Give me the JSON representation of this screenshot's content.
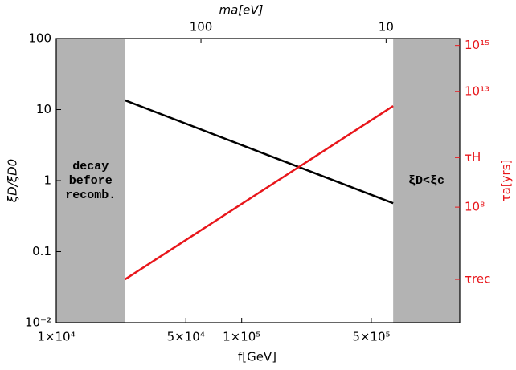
{
  "chart_data": {
    "type": "line",
    "x_label": "f[GeV]",
    "x2_label": "ma[eV]",
    "y_label": "ξD/ξD0",
    "y2_label": "τa[yrs]",
    "xscale": "log",
    "yscale": "log",
    "y2scale": "log",
    "x2scale": "log",
    "xlim": [
      10000,
      1500000
    ],
    "xticks": [
      {
        "value": 10000,
        "label": "1×10⁴"
      },
      {
        "value": 50000,
        "label": "5×10⁴"
      },
      {
        "value": 100000,
        "label": "1×10⁵"
      },
      {
        "value": 500000,
        "label": "5×10⁵"
      }
    ],
    "x2lim": [
      605,
      4
    ],
    "x2ticks": [
      100,
      10
    ],
    "ylim": [
      0.01,
      100
    ],
    "yticks": [
      {
        "value": 0.01,
        "label": "10⁻²"
      },
      0.1,
      1,
      10,
      100
    ],
    "y2lim": [
      1000,
      2000000000000000.0
    ],
    "y2ticks": [
      {
        "value": 75000,
        "label": "τrec"
      },
      {
        "value": 100000000,
        "label": "10⁸"
      },
      {
        "value": 14000000000,
        "label": "τH"
      },
      {
        "value": 10000000000000.0,
        "label": "10¹³"
      },
      {
        "value": 1000000000000000.0,
        "label": "10¹⁵"
      }
    ],
    "y2color": "#e8161b",
    "x": [
      23500,
      656000
    ],
    "series": [
      {
        "color": "#000000",
        "values": [
          13.5,
          0.48
        ]
      },
      {
        "color": "#e8161b",
        "values": [
          75000,
          2400000000000.0
        ],
        "axis": "y2"
      }
    ],
    "shaded_regions": [
      {
        "x": [
          10000,
          23500
        ],
        "label": [
          "decay",
          "before",
          "recomb."
        ],
        "color": "#b3b3b3"
      },
      {
        "x": [
          656000,
          1500000
        ],
        "label": [
          "ξD<ξc"
        ],
        "color": "#b3b3b3"
      }
    ]
  }
}
